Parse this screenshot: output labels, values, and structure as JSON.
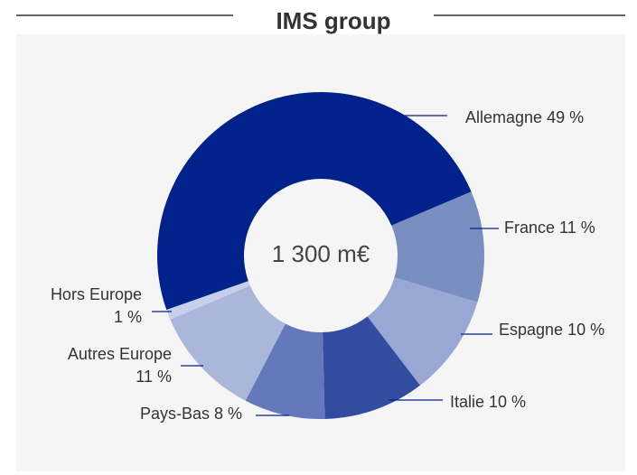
{
  "chart_data": {
    "type": "donut",
    "title": "IMS group",
    "center_label": "1 300 m€",
    "categories": [
      "Allemagne",
      "France",
      "Espagne",
      "Italie",
      "Pays-Bas",
      "Autres Europe",
      "Hors Europe"
    ],
    "values": [
      49,
      11,
      10,
      10,
      8,
      11,
      1
    ],
    "value_labels": [
      "49 %",
      "11 %",
      "10 %",
      "10 %",
      "8 %",
      "11 %",
      "1 %"
    ],
    "colors": [
      "#00228a",
      "#7b8ec2",
      "#99a7d4",
      "#324ca0",
      "#6479bb",
      "#aab6da",
      "#c7d0ea"
    ]
  }
}
